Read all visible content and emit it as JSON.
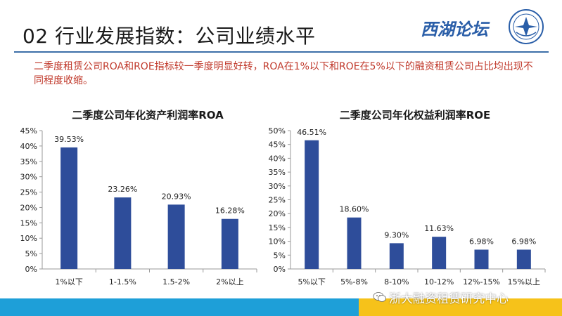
{
  "header": {
    "title": "02 行业发展指数：公司业绩水平",
    "logo_text": "西湖论坛",
    "seal_icon": "west-lake-forum-seal",
    "rule_color": "#3d6fa8"
  },
  "summary": "二季度租赁公司ROA和ROE指标较一季度明显好转，ROA在1%以下和ROE在5%以下的融资租赁公司占比均出现不同程度收缩。",
  "colors": {
    "bar": "#2e4d9a",
    "axis": "#9a9a9a",
    "summary": "#c0392b",
    "footer_blue": "#1e9fd8",
    "footer_yellow": "#f6c21a"
  },
  "chart_data": [
    {
      "type": "bar",
      "title": "二季度公司年化资产利润率ROA",
      "categories": [
        "1%以下",
        "1-1.5%",
        "1.5-2%",
        "2%以上"
      ],
      "values": [
        39.53,
        23.26,
        20.93,
        16.28
      ],
      "value_labels": [
        "39.53%",
        "23.26%",
        "20.93%",
        "16.28%"
      ],
      "yticks": [
        "0%",
        "5%",
        "10%",
        "15%",
        "20%",
        "25%",
        "30%",
        "35%",
        "40%",
        "45%"
      ],
      "ylim": [
        0,
        45
      ],
      "grid": false,
      "legend": false
    },
    {
      "type": "bar",
      "title": "二季度公司年化权益利润率ROE",
      "categories": [
        "5%以下",
        "5%-8%",
        "8-10%",
        "10-12%",
        "12%-15%",
        "15%以上"
      ],
      "values": [
        46.51,
        18.6,
        9.3,
        11.63,
        6.98,
        6.98
      ],
      "value_labels": [
        "46.51%",
        "18.60%",
        "9.30%",
        "11.63%",
        "6.98%",
        "6.98%"
      ],
      "yticks": [
        "0%",
        "5%",
        "10%",
        "15%",
        "20%",
        "25%",
        "30%",
        "35%",
        "40%",
        "45%",
        "50%"
      ],
      "ylim": [
        0,
        50
      ],
      "grid": false,
      "legend": false
    }
  ],
  "footer": {
    "watermark": "浙大融资租赁研究中心",
    "watermark_icon": "wechat-icon"
  }
}
